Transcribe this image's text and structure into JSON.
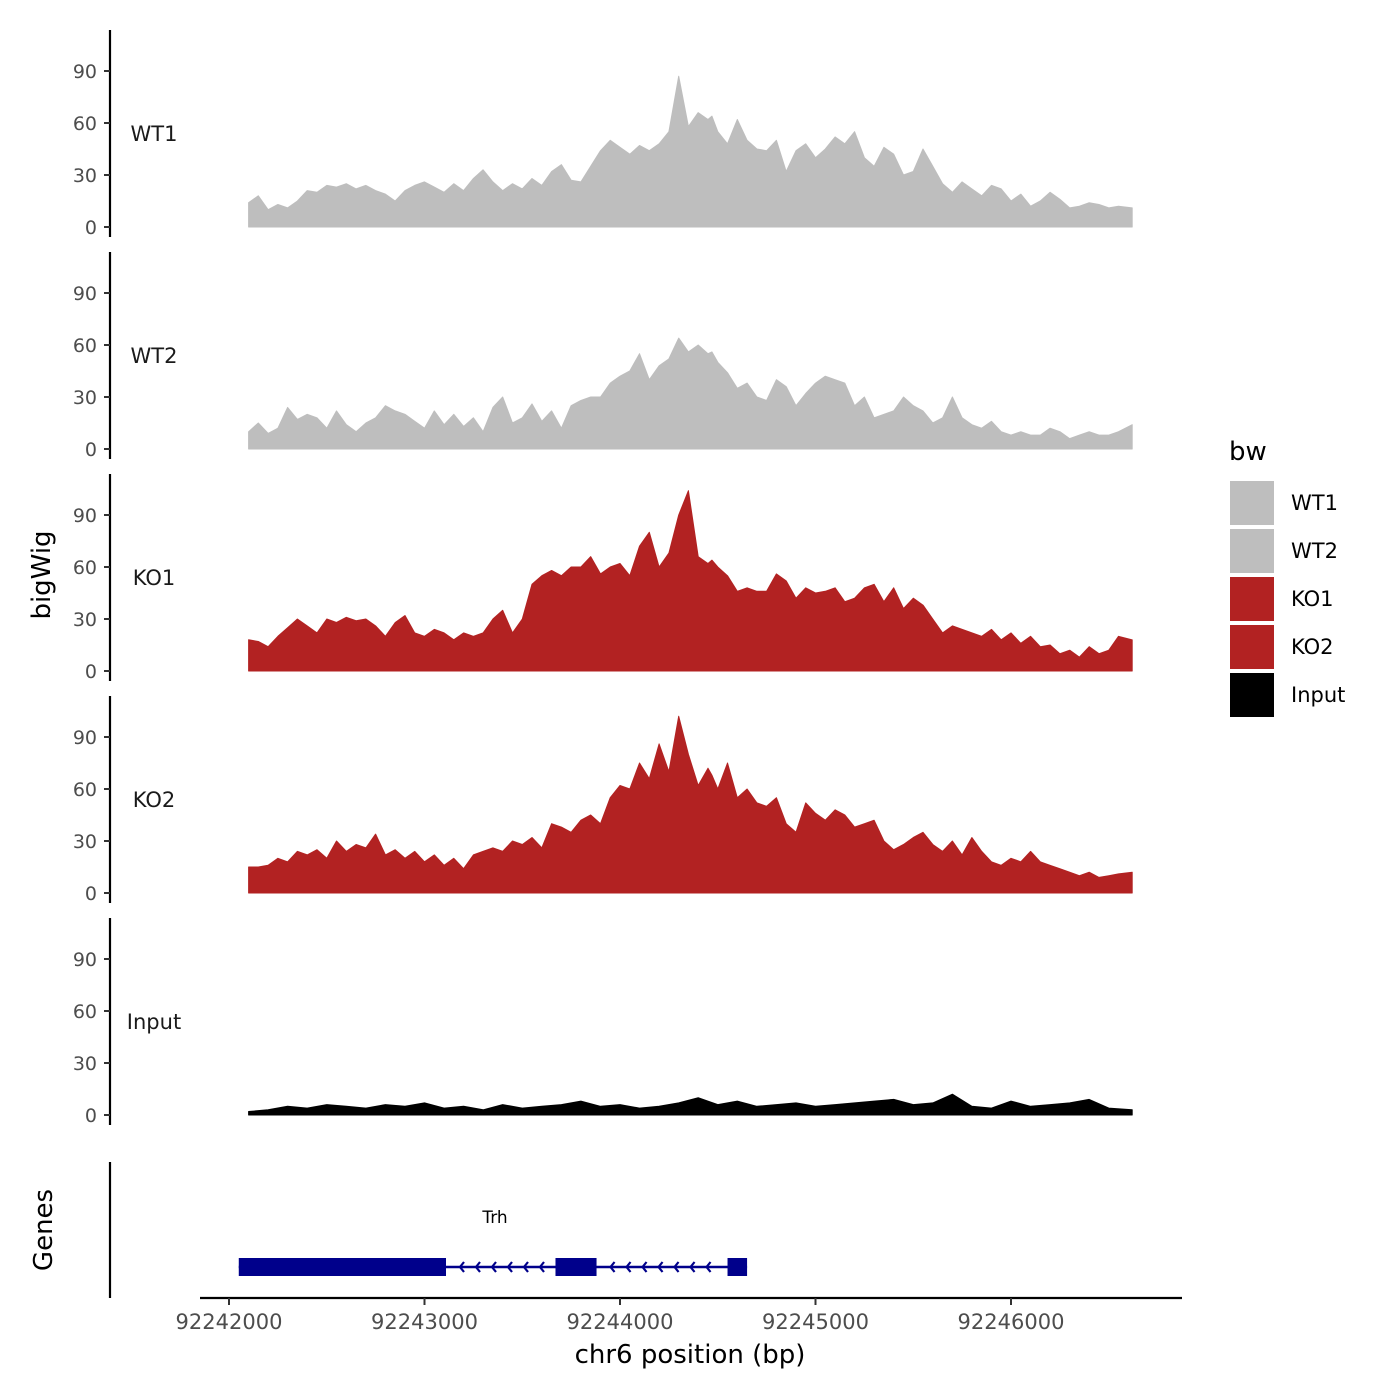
{
  "chart_data": {
    "type": "area",
    "y_axis_title": "bigWig",
    "x_axis_title": "chr6 position (bp)",
    "genes_panel_label": "Genes",
    "x_range": [
      92241850,
      92246850
    ],
    "x_ticks": [
      92242000,
      92243000,
      92244000,
      92245000,
      92246000
    ],
    "x_tick_labels": [
      "92242000",
      "92243000",
      "92244000",
      "92245000",
      "92246000"
    ],
    "y_range": [
      0,
      112
    ],
    "y_ticks": [
      0,
      30,
      60,
      90
    ],
    "y_tick_labels": [
      "0",
      "30",
      "60",
      "90"
    ],
    "legend": {
      "title": "bw",
      "entries": [
        {
          "label": "WT1",
          "color": "#bebebe"
        },
        {
          "label": "WT2",
          "color": "#bebebe"
        },
        {
          "label": "KO1",
          "color": "#b22222"
        },
        {
          "label": "KO2",
          "color": "#b22222"
        },
        {
          "label": "Input",
          "color": "#000000"
        }
      ]
    },
    "series": [
      {
        "name": "WT1",
        "color": "#bebebe",
        "x": [
          92242100,
          92242150,
          92242200,
          92242250,
          92242300,
          92242350,
          92242400,
          92242450,
          92242500,
          92242550,
          92242600,
          92242650,
          92242700,
          92242750,
          92242800,
          92242850,
          92242900,
          92242950,
          92243000,
          92243050,
          92243100,
          92243150,
          92243200,
          92243250,
          92243300,
          92243350,
          92243400,
          92243450,
          92243500,
          92243550,
          92243600,
          92243650,
          92243700,
          92243750,
          92243800,
          92243850,
          92243900,
          92243950,
          92244000,
          92244050,
          92244100,
          92244150,
          92244200,
          92244250,
          92244300,
          92244350,
          92244400,
          92244450,
          92244470,
          92244500,
          92244550,
          92244600,
          92244650,
          92244700,
          92244750,
          92244800,
          92244850,
          92244900,
          92244950,
          92245000,
          92245050,
          92245100,
          92245150,
          92245200,
          92245250,
          92245300,
          92245350,
          92245400,
          92245450,
          92245500,
          92245550,
          92245600,
          92245650,
          92245700,
          92245750,
          92245800,
          92245850,
          92245900,
          92245950,
          92246000,
          92246050,
          92246100,
          92246150,
          92246200,
          92246250,
          92246300,
          92246350,
          92246400,
          92246450,
          92246500,
          92246550,
          92246620
        ],
        "values": [
          14,
          18,
          10,
          13,
          11,
          15,
          21,
          20,
          24,
          23,
          25,
          22,
          24,
          21,
          19,
          15,
          21,
          24,
          26,
          23,
          20,
          25,
          21,
          28,
          33,
          26,
          21,
          25,
          22,
          28,
          24,
          32,
          36,
          27,
          26,
          35,
          44,
          50,
          46,
          42,
          47,
          44,
          48,
          55,
          87,
          58,
          66,
          62,
          64,
          55,
          48,
          62,
          50,
          45,
          44,
          50,
          32,
          44,
          48,
          40,
          45,
          52,
          48,
          55,
          40,
          35,
          46,
          42,
          30,
          32,
          45,
          35,
          25,
          20,
          26,
          22,
          18,
          24,
          22,
          15,
          19,
          12,
          15,
          20,
          16,
          11,
          12,
          14,
          13,
          11,
          12,
          11
        ]
      },
      {
        "name": "WT2",
        "color": "#bebebe",
        "x": [
          92242100,
          92242150,
          92242200,
          92242250,
          92242300,
          92242350,
          92242400,
          92242450,
          92242500,
          92242550,
          92242600,
          92242650,
          92242700,
          92242750,
          92242800,
          92242850,
          92242900,
          92242950,
          92243000,
          92243050,
          92243100,
          92243150,
          92243200,
          92243250,
          92243300,
          92243350,
          92243400,
          92243450,
          92243500,
          92243550,
          92243600,
          92243650,
          92243700,
          92243750,
          92243800,
          92243850,
          92243900,
          92243950,
          92244000,
          92244050,
          92244100,
          92244150,
          92244200,
          92244250,
          92244300,
          92244350,
          92244400,
          92244450,
          92244470,
          92244500,
          92244550,
          92244600,
          92244650,
          92244700,
          92244750,
          92244800,
          92244850,
          92244900,
          92244950,
          92245000,
          92245050,
          92245100,
          92245150,
          92245200,
          92245250,
          92245300,
          92245350,
          92245400,
          92245450,
          92245500,
          92245550,
          92245600,
          92245650,
          92245700,
          92245750,
          92245800,
          92245850,
          92245900,
          92245950,
          92246000,
          92246050,
          92246100,
          92246150,
          92246200,
          92246250,
          92246300,
          92246350,
          92246400,
          92246450,
          92246500,
          92246550,
          92246620
        ],
        "values": [
          10,
          15,
          9,
          12,
          24,
          17,
          20,
          18,
          12,
          22,
          14,
          10,
          15,
          18,
          25,
          22,
          20,
          16,
          12,
          22,
          14,
          20,
          13,
          18,
          10,
          24,
          30,
          15,
          18,
          26,
          16,
          22,
          12,
          25,
          28,
          30,
          30,
          38,
          42,
          45,
          55,
          40,
          48,
          52,
          64,
          56,
          60,
          55,
          56,
          50,
          44,
          35,
          38,
          30,
          28,
          40,
          36,
          25,
          32,
          38,
          42,
          40,
          38,
          25,
          30,
          18,
          20,
          22,
          30,
          25,
          22,
          15,
          18,
          30,
          18,
          14,
          12,
          16,
          10,
          8,
          10,
          8,
          8,
          12,
          10,
          6,
          8,
          10,
          8,
          8,
          10,
          14
        ]
      },
      {
        "name": "KO1",
        "color": "#b22222",
        "x": [
          92242100,
          92242150,
          92242200,
          92242250,
          92242300,
          92242350,
          92242400,
          92242450,
          92242500,
          92242550,
          92242600,
          92242650,
          92242700,
          92242750,
          92242800,
          92242850,
          92242900,
          92242950,
          92243000,
          92243050,
          92243100,
          92243150,
          92243200,
          92243250,
          92243300,
          92243350,
          92243400,
          92243450,
          92243500,
          92243550,
          92243600,
          92243650,
          92243700,
          92243750,
          92243800,
          92243850,
          92243900,
          92243950,
          92244000,
          92244050,
          92244100,
          92244150,
          92244200,
          92244250,
          92244300,
          92244350,
          92244400,
          92244450,
          92244470,
          92244500,
          92244550,
          92244600,
          92244650,
          92244700,
          92244750,
          92244800,
          92244850,
          92244900,
          92244950,
          92245000,
          92245050,
          92245100,
          92245150,
          92245200,
          92245250,
          92245300,
          92245350,
          92245400,
          92245450,
          92245500,
          92245550,
          92245600,
          92245650,
          92245700,
          92245750,
          92245800,
          92245850,
          92245900,
          92245950,
          92246000,
          92246050,
          92246100,
          92246150,
          92246200,
          92246250,
          92246300,
          92246350,
          92246400,
          92246450,
          92246500,
          92246550,
          92246620
        ],
        "values": [
          18,
          17,
          14,
          20,
          25,
          30,
          26,
          22,
          30,
          28,
          31,
          29,
          30,
          26,
          20,
          28,
          32,
          22,
          20,
          24,
          22,
          18,
          22,
          20,
          22,
          30,
          35,
          22,
          30,
          50,
          55,
          58,
          55,
          60,
          60,
          66,
          56,
          60,
          62,
          55,
          72,
          80,
          60,
          68,
          90,
          104,
          66,
          62,
          64,
          60,
          55,
          46,
          48,
          46,
          46,
          56,
          52,
          42,
          48,
          45,
          46,
          48,
          40,
          42,
          48,
          50,
          40,
          48,
          36,
          42,
          38,
          30,
          22,
          26,
          24,
          22,
          20,
          24,
          18,
          22,
          16,
          20,
          14,
          15,
          10,
          12,
          8,
          14,
          10,
          12,
          20,
          18
        ]
      },
      {
        "name": "KO2",
        "color": "#b22222",
        "x": [
          92242100,
          92242150,
          92242200,
          92242250,
          92242300,
          92242350,
          92242400,
          92242450,
          92242500,
          92242550,
          92242600,
          92242650,
          92242700,
          92242750,
          92242800,
          92242850,
          92242900,
          92242950,
          92243000,
          92243050,
          92243100,
          92243150,
          92243200,
          92243250,
          92243300,
          92243350,
          92243400,
          92243450,
          92243500,
          92243550,
          92243600,
          92243650,
          92243700,
          92243750,
          92243800,
          92243850,
          92243900,
          92243950,
          92244000,
          92244050,
          92244100,
          92244150,
          92244200,
          92244250,
          92244300,
          92244350,
          92244400,
          92244450,
          92244470,
          92244500,
          92244550,
          92244600,
          92244650,
          92244700,
          92244750,
          92244800,
          92244850,
          92244900,
          92244950,
          92245000,
          92245050,
          92245100,
          92245150,
          92245200,
          92245250,
          92245300,
          92245350,
          92245400,
          92245450,
          92245500,
          92245550,
          92245600,
          92245650,
          92245700,
          92245750,
          92245800,
          92245850,
          92245900,
          92245950,
          92246000,
          92246050,
          92246100,
          92246150,
          92246200,
          92246250,
          92246300,
          92246350,
          92246400,
          92246450,
          92246500,
          92246550,
          92246620
        ],
        "values": [
          15,
          15,
          16,
          20,
          18,
          24,
          22,
          25,
          20,
          30,
          24,
          28,
          26,
          34,
          22,
          25,
          20,
          24,
          18,
          22,
          16,
          20,
          14,
          22,
          24,
          26,
          24,
          30,
          28,
          32,
          26,
          40,
          38,
          35,
          42,
          45,
          40,
          55,
          62,
          60,
          75,
          66,
          86,
          70,
          102,
          80,
          62,
          72,
          68,
          60,
          75,
          55,
          60,
          52,
          50,
          55,
          40,
          35,
          52,
          46,
          42,
          48,
          45,
          38,
          40,
          42,
          30,
          25,
          28,
          32,
          35,
          28,
          24,
          30,
          22,
          32,
          24,
          18,
          16,
          20,
          18,
          24,
          18,
          16,
          14,
          12,
          10,
          12,
          9,
          10,
          11,
          12
        ]
      },
      {
        "name": "Input",
        "color": "#000000",
        "x": [
          92242100,
          92242200,
          92242300,
          92242400,
          92242500,
          92242600,
          92242700,
          92242800,
          92242900,
          92243000,
          92243100,
          92243200,
          92243300,
          92243400,
          92243500,
          92243600,
          92243700,
          92243800,
          92243900,
          92244000,
          92244100,
          92244200,
          92244300,
          92244400,
          92244500,
          92244600,
          92244700,
          92244800,
          92244900,
          92245000,
          92245100,
          92245200,
          92245300,
          92245400,
          92245500,
          92245600,
          92245700,
          92245800,
          92245900,
          92246000,
          92246100,
          92246200,
          92246300,
          92246400,
          92246500,
          92246620
        ],
        "values": [
          2,
          3,
          5,
          4,
          6,
          5,
          4,
          6,
          5,
          7,
          4,
          5,
          3,
          6,
          4,
          5,
          6,
          8,
          5,
          6,
          4,
          5,
          7,
          10,
          6,
          8,
          5,
          6,
          7,
          5,
          6,
          7,
          8,
          9,
          6,
          7,
          12,
          5,
          4,
          8,
          5,
          6,
          7,
          9,
          4,
          3
        ]
      }
    ],
    "genes": [
      {
        "name": "Trh",
        "strand": "-",
        "start": 92242050,
        "end": 92244650,
        "exons": [
          [
            92242050,
            92243110
          ],
          [
            92243670,
            92243880
          ],
          [
            92244550,
            92244650
          ]
        ]
      }
    ]
  }
}
